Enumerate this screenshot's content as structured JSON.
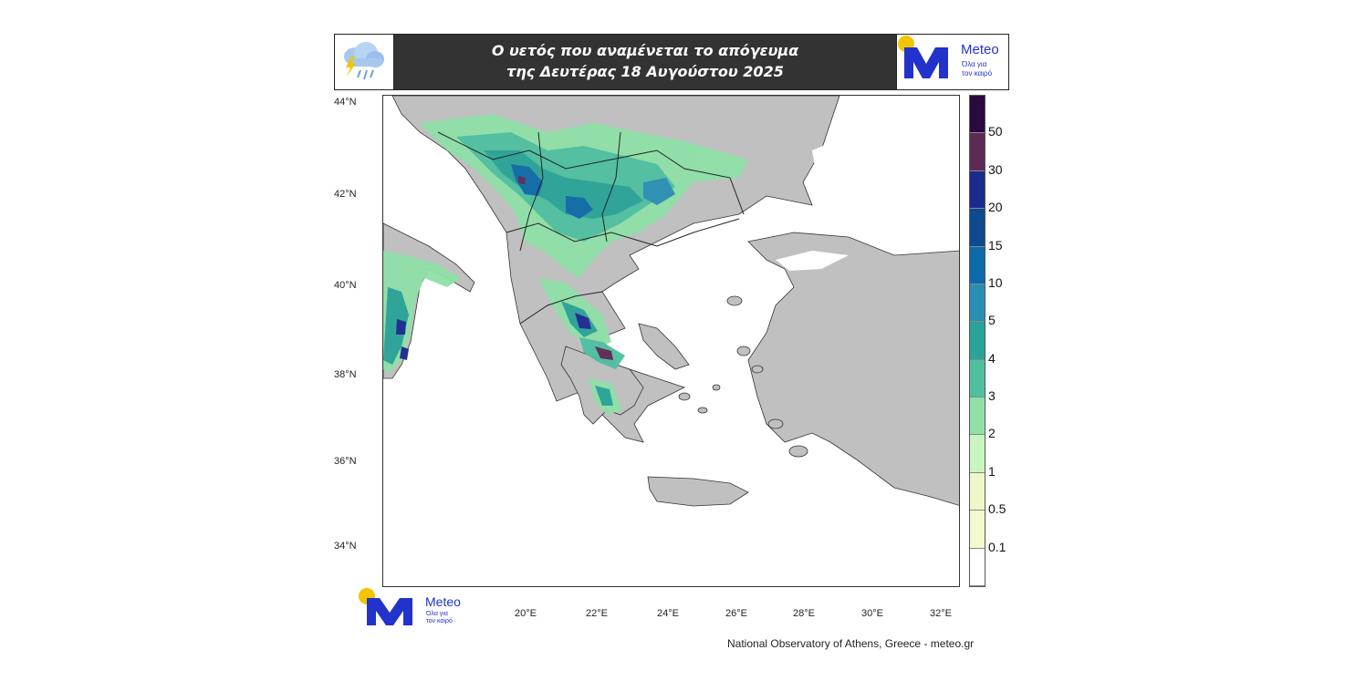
{
  "header": {
    "title_line1": "Ο υετός που αναμένεται το απόγευμα",
    "title_line2": "της Δευτέρας 18 Αυγούστου 2025",
    "weather_icon": "rain-cloud-lightning-icon"
  },
  "logo": {
    "name": "Meteo",
    "tagline_line1": "Όλα για",
    "tagline_line2": "τον καιρό",
    "colors": {
      "sun": "#f5c400",
      "mark": "#2233cc"
    }
  },
  "map": {
    "lat_labels": [
      "44°N",
      "42°N",
      "40°N",
      "38°N",
      "36°N",
      "34°N"
    ],
    "lon_labels": [
      "20°E",
      "22°E",
      "24°E",
      "26°E",
      "28°E",
      "30°E",
      "32°E"
    ],
    "land_color": "#c0c0c0",
    "sea_color": "#ffffff"
  },
  "colorbar": {
    "labels": [
      "50",
      "30",
      "20",
      "15",
      "10",
      "5",
      "4",
      "3",
      "2",
      "1",
      "0.5",
      "0.1"
    ],
    "colors": [
      "#2a0a3e",
      "#5c2a55",
      "#1a2a8f",
      "#0d4a8f",
      "#0d6aa8",
      "#2a8fb5",
      "#2aa398",
      "#4fbfa0",
      "#8fe0a8",
      "#c8f5c0",
      "#eef7c8",
      "#f4f9d0",
      "#ffffff"
    ]
  },
  "credit": "National Observatory of Athens, Greece - meteo.gr"
}
